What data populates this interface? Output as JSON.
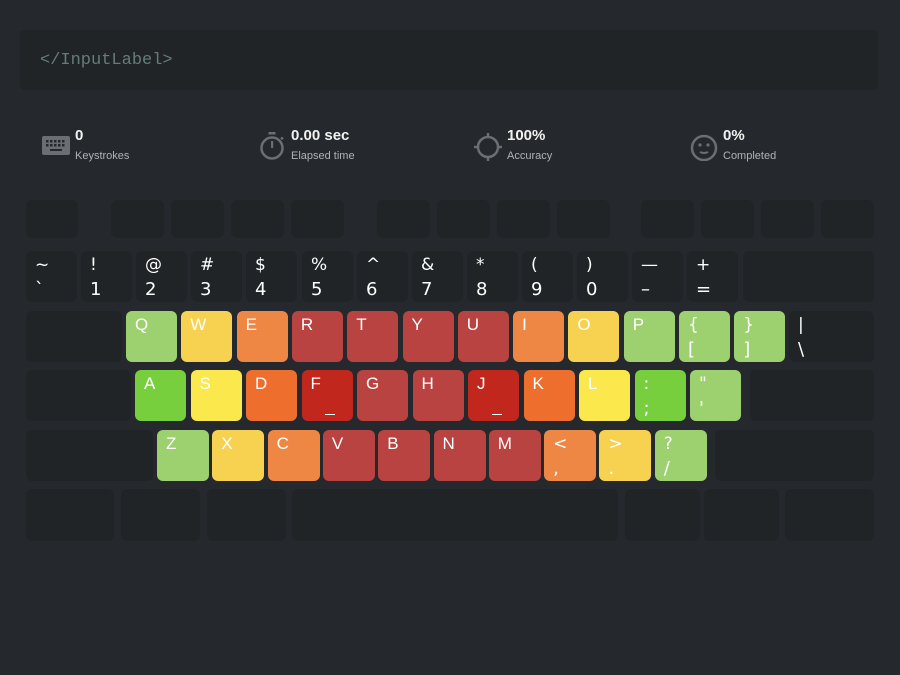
{
  "input_label": "</InputLabel>",
  "stats": [
    {
      "icon": "keyboard-icon",
      "value": "0",
      "label": "Keystrokes"
    },
    {
      "icon": "stopwatch-icon",
      "value": "0.00 sec",
      "label": "Elapsed time"
    },
    {
      "icon": "crosshair-icon",
      "value": "100%",
      "label": "Accuracy"
    },
    {
      "icon": "smiley-icon",
      "value": "0%",
      "label": "Completed"
    }
  ],
  "colors": {
    "background": "#25282c",
    "key_empty": "#212427",
    "light_green": "#9dd06f",
    "green": "#78cf3e",
    "yellow": "#fae84d",
    "light_yellow": "#f7d251",
    "orange": "#ee8744",
    "dark_orange": "#ee6e2d",
    "red": "#b94340",
    "dark_red": "#c1271c"
  },
  "keyboard": {
    "rows": [
      [
        {
          "name": "escape"
        },
        {
          "name": "f1"
        },
        {
          "name": "f2"
        },
        {
          "name": "f3"
        },
        {
          "name": "f4"
        },
        {
          "name": "f5"
        },
        {
          "name": "f6"
        },
        {
          "name": "f7"
        },
        {
          "name": "f8"
        },
        {
          "name": "f9"
        },
        {
          "name": "f10"
        },
        {
          "name": "f11"
        },
        {
          "name": "f12"
        }
      ],
      [
        {
          "name": "backtick",
          "top": "~",
          "bottom": "`"
        },
        {
          "name": "1",
          "top": "!",
          "bottom": "1"
        },
        {
          "name": "2",
          "top": "@",
          "bottom": "2"
        },
        {
          "name": "3",
          "top": "#",
          "bottom": "3"
        },
        {
          "name": "4",
          "top": "$",
          "bottom": "4"
        },
        {
          "name": "5",
          "top": "%",
          "bottom": "5"
        },
        {
          "name": "6",
          "top": "^",
          "bottom": "6"
        },
        {
          "name": "7",
          "top": "&",
          "bottom": "7"
        },
        {
          "name": "8",
          "top": "*",
          "bottom": "8"
        },
        {
          "name": "9",
          "top": "(",
          "bottom": "9"
        },
        {
          "name": "0",
          "top": ")",
          "bottom": "0"
        },
        {
          "name": "minus",
          "top": "—",
          "bottom": "–"
        },
        {
          "name": "equals",
          "top": "+",
          "bottom": "="
        },
        {
          "name": "backspace"
        }
      ],
      [
        {
          "name": "tab"
        },
        {
          "name": "q",
          "top": "Q",
          "color": "light_green"
        },
        {
          "name": "w",
          "top": "W",
          "color": "light_yellow"
        },
        {
          "name": "e",
          "top": "E",
          "color": "orange"
        },
        {
          "name": "r",
          "top": "R",
          "color": "red"
        },
        {
          "name": "t",
          "top": "T",
          "color": "red"
        },
        {
          "name": "y",
          "top": "Y",
          "color": "red"
        },
        {
          "name": "u",
          "top": "U",
          "color": "red"
        },
        {
          "name": "i",
          "top": "I",
          "color": "orange"
        },
        {
          "name": "o",
          "top": "O",
          "color": "light_yellow"
        },
        {
          "name": "p",
          "top": "P",
          "color": "light_green"
        },
        {
          "name": "left-bracket",
          "top": "{",
          "bottom": "[",
          "color": "light_green"
        },
        {
          "name": "right-bracket",
          "top": "}",
          "bottom": "]",
          "color": "light_green"
        },
        {
          "name": "backslash",
          "top": "|",
          "bottom": "\\"
        }
      ],
      [
        {
          "name": "caps-lock"
        },
        {
          "name": "a",
          "top": "A",
          "color": "green"
        },
        {
          "name": "s",
          "top": "S",
          "color": "yellow"
        },
        {
          "name": "d",
          "top": "D",
          "color": "dark_orange"
        },
        {
          "name": "f",
          "top": "F",
          "color": "dark_red",
          "bump": true
        },
        {
          "name": "g",
          "top": "G",
          "color": "red"
        },
        {
          "name": "h",
          "top": "H",
          "color": "red"
        },
        {
          "name": "j",
          "top": "J",
          "color": "dark_red",
          "bump": true
        },
        {
          "name": "k",
          "top": "K",
          "color": "dark_orange"
        },
        {
          "name": "l",
          "top": "L",
          "color": "yellow"
        },
        {
          "name": "semicolon",
          "top": ":",
          "bottom": ";",
          "color": "green"
        },
        {
          "name": "quote",
          "top": "\"",
          "bottom": "'",
          "color": "light_green"
        },
        {
          "name": "enter"
        }
      ],
      [
        {
          "name": "left-shift"
        },
        {
          "name": "z",
          "top": "Z",
          "color": "light_green"
        },
        {
          "name": "x",
          "top": "X",
          "color": "light_yellow"
        },
        {
          "name": "c",
          "top": "C",
          "color": "orange"
        },
        {
          "name": "v",
          "top": "V",
          "color": "red"
        },
        {
          "name": "b",
          "top": "B",
          "color": "red"
        },
        {
          "name": "n",
          "top": "N",
          "color": "red"
        },
        {
          "name": "m",
          "top": "M",
          "color": "red"
        },
        {
          "name": "comma",
          "top": "<",
          "bottom": ",",
          "color": "orange"
        },
        {
          "name": "period",
          "top": ">",
          "bottom": ".",
          "color": "light_yellow"
        },
        {
          "name": "slash",
          "top": "?",
          "bottom": "/",
          "color": "light_green"
        },
        {
          "name": "right-shift"
        }
      ],
      [
        {
          "name": "left-ctrl"
        },
        {
          "name": "left-meta"
        },
        {
          "name": "left-alt"
        },
        {
          "name": "space"
        },
        {
          "name": "right-alt"
        },
        {
          "name": "right-meta"
        },
        {
          "name": "right-ctrl"
        }
      ]
    ]
  }
}
